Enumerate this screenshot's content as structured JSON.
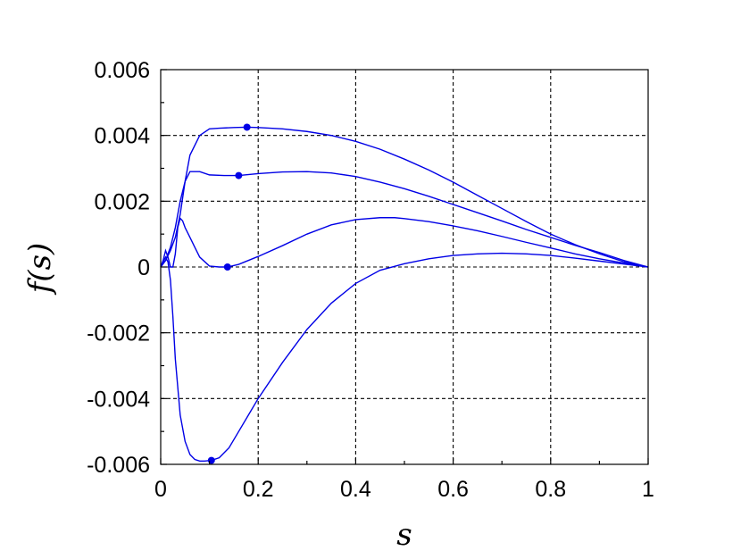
{
  "chart_data": {
    "type": "line",
    "title": "",
    "xlabel": "s",
    "ylabel": "f(s)",
    "xlim": [
      0,
      1
    ],
    "ylim": [
      -0.006,
      0.006
    ],
    "x_ticks": [
      0,
      0.2,
      0.4,
      0.6,
      0.8,
      1
    ],
    "x_tick_labels": [
      "0",
      "0.2",
      "0.4",
      "0.6",
      "0.8",
      "1"
    ],
    "y_ticks": [
      0.006,
      0.004,
      0.002,
      0,
      -0.002,
      -0.004,
      -0.006
    ],
    "y_tick_labels": [
      "0.006",
      "0.004",
      "0.002",
      "0",
      "-0.002",
      "-0.004",
      "-0.006"
    ],
    "grid": true,
    "line_color": "#0000e6",
    "series": [
      {
        "x": [
          0,
          0.01,
          0.02,
          0.03,
          0.04,
          0.05,
          0.06,
          0.08,
          0.1,
          0.12,
          0.15,
          0.177,
          0.2,
          0.25,
          0.3,
          0.35,
          0.4,
          0.45,
          0.5,
          0.55,
          0.6,
          0.65,
          0.7,
          0.75,
          0.8,
          0.85,
          0.9,
          0.95,
          1.0
        ],
        "y": [
          0,
          0.0002,
          0.0005,
          0.0009,
          0.0016,
          0.0026,
          0.0034,
          0.004,
          0.0042,
          0.00422,
          0.00424,
          0.00425,
          0.00424,
          0.0042,
          0.00412,
          0.004,
          0.00382,
          0.00358,
          0.00328,
          0.00295,
          0.00258,
          0.00218,
          0.00178,
          0.00138,
          0.001,
          0.00068,
          0.0004,
          0.00016,
          0
        ],
        "marker": {
          "x": 0.177,
          "y": 0.00425
        }
      },
      {
        "x": [
          0,
          0.01,
          0.02,
          0.03,
          0.04,
          0.05,
          0.06,
          0.08,
          0.1,
          0.13,
          0.16,
          0.2,
          0.25,
          0.3,
          0.35,
          0.4,
          0.45,
          0.5,
          0.55,
          0.6,
          0.65,
          0.7,
          0.75,
          0.8,
          0.85,
          0.9,
          0.95,
          1.0
        ],
        "y": [
          0,
          0.0002,
          0.0006,
          0.0012,
          0.002,
          0.0026,
          0.0029,
          0.0029,
          0.0028,
          0.00278,
          0.00278,
          0.00284,
          0.00289,
          0.0029,
          0.00286,
          0.00275,
          0.00258,
          0.00238,
          0.00215,
          0.0019,
          0.00165,
          0.0014,
          0.00114,
          0.0009,
          0.00066,
          0.00044,
          0.0002,
          0
        ],
        "marker": {
          "x": 0.16,
          "y": 0.00278
        }
      },
      {
        "x": [
          0,
          0.005,
          0.01,
          0.015,
          0.02,
          0.025,
          0.03,
          0.035,
          0.04,
          0.045,
          0.05,
          0.06,
          0.07,
          0.08,
          0.1,
          0.12,
          0.137,
          0.16,
          0.2,
          0.25,
          0.3,
          0.35,
          0.4,
          0.45,
          0.48,
          0.5,
          0.55,
          0.6,
          0.65,
          0.7,
          0.75,
          0.8,
          0.85,
          0.9,
          0.95,
          1.0
        ],
        "y": [
          0,
          0.0002,
          0.0005,
          0.0003,
          0,
          0,
          0.0004,
          0.0012,
          0.00148,
          0.0014,
          0.0012,
          0.0009,
          0.0006,
          0.0003,
          3e-05,
          0,
          0,
          8e-05,
          0.00032,
          0.00065,
          0.001,
          0.00128,
          0.00144,
          0.0015,
          0.0015,
          0.00147,
          0.00138,
          0.00125,
          0.0011,
          0.00093,
          0.00075,
          0.00058,
          0.0004,
          0.00025,
          0.00012,
          0
        ],
        "marker": {
          "x": 0.137,
          "y": 0
        }
      },
      {
        "x": [
          0,
          0.005,
          0.01,
          0.015,
          0.02,
          0.025,
          0.03,
          0.04,
          0.05,
          0.06,
          0.07,
          0.08,
          0.09,
          0.104,
          0.12,
          0.14,
          0.16,
          0.18,
          0.2,
          0.25,
          0.3,
          0.35,
          0.4,
          0.45,
          0.5,
          0.55,
          0.6,
          0.65,
          0.7,
          0.75,
          0.8,
          0.85,
          0.9,
          0.95,
          1.0
        ],
        "y": [
          0,
          0.00015,
          0.0003,
          0.00015,
          -0.0004,
          -0.0015,
          -0.0028,
          -0.0045,
          -0.0053,
          -0.0057,
          -0.00585,
          -0.0059,
          -0.0059,
          -0.00588,
          -0.0058,
          -0.0055,
          -0.005,
          -0.0045,
          -0.004,
          -0.0029,
          -0.0019,
          -0.0011,
          -0.0005,
          -0.0001,
          0.0001,
          0.00025,
          0.00035,
          0.0004,
          0.00042,
          0.0004,
          0.00035,
          0.00027,
          0.00018,
          9e-05,
          0
        ],
        "marker": {
          "x": 0.104,
          "y": -0.00588
        }
      }
    ]
  }
}
